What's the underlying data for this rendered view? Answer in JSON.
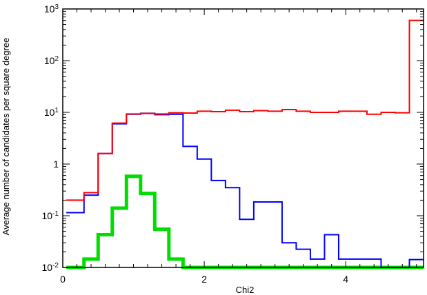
{
  "chart_data": {
    "type": "line",
    "subtype": "step-histogram",
    "title": "",
    "xlabel": "Chi2",
    "ylabel": "Average number of candidates per square degree",
    "xlim": [
      0,
      5.1
    ],
    "ylim": [
      0.01,
      1000
    ],
    "yscale": "log",
    "grid": false,
    "legend": "none",
    "x_ticks": [
      {
        "value": 0,
        "label": "0"
      },
      {
        "value": 2,
        "label": "2"
      },
      {
        "value": 4,
        "label": "4"
      }
    ],
    "y_ticks": [
      {
        "value": 0.01,
        "mantissa": "10",
        "exp": "-2"
      },
      {
        "value": 0.1,
        "mantissa": "10",
        "exp": "-1"
      },
      {
        "value": 1,
        "mantissa": "1",
        "exp": ""
      },
      {
        "value": 10,
        "mantissa": "10",
        "exp": "1"
      },
      {
        "value": 100,
        "mantissa": "10",
        "exp": "2"
      },
      {
        "value": 1000,
        "mantissa": "10",
        "exp": "3"
      }
    ],
    "bin_edges": [
      0.05,
      0.3,
      0.5,
      0.7,
      0.9,
      1.1,
      1.3,
      1.5,
      1.7,
      1.9,
      2.1,
      2.3,
      2.5,
      2.7,
      2.9,
      3.1,
      3.3,
      3.5,
      3.7,
      3.9,
      4.1,
      4.3,
      4.5,
      4.7,
      4.9,
      5.1
    ],
    "series": [
      {
        "color": "#ff0000",
        "values": [
          0.2,
          0.28,
          1.6,
          6.2,
          9.3,
          9.5,
          9.3,
          9.8,
          9.7,
          10.5,
          10.3,
          11.0,
          10.3,
          10.8,
          10.5,
          11.3,
          10.5,
          10.0,
          10.0,
          10.5,
          10.5,
          9.2,
          10.0,
          9.8,
          600
        ]
      },
      {
        "color": "#0000ff",
        "values": [
          0.115,
          0.25,
          1.6,
          6.0,
          9.2,
          9.6,
          9.0,
          9.2,
          2.2,
          1.25,
          0.48,
          0.35,
          0.085,
          0.185,
          0.185,
          0.03,
          0.0225,
          0.0145,
          0.043,
          0.0145,
          0.0145,
          0.0145,
          0.01,
          0.01,
          0.0142
        ]
      },
      {
        "color": "#00dd00",
        "values": [
          0.01,
          0.0145,
          0.043,
          0.14,
          0.58,
          0.27,
          0.055,
          0.0145,
          0.01,
          0.01,
          0.01,
          0.01,
          0.01,
          0.01,
          0.01,
          0.01,
          0.01,
          0.01,
          0.01,
          0.01,
          0.01,
          0.01,
          0.01,
          0.01,
          0.01
        ]
      }
    ]
  }
}
